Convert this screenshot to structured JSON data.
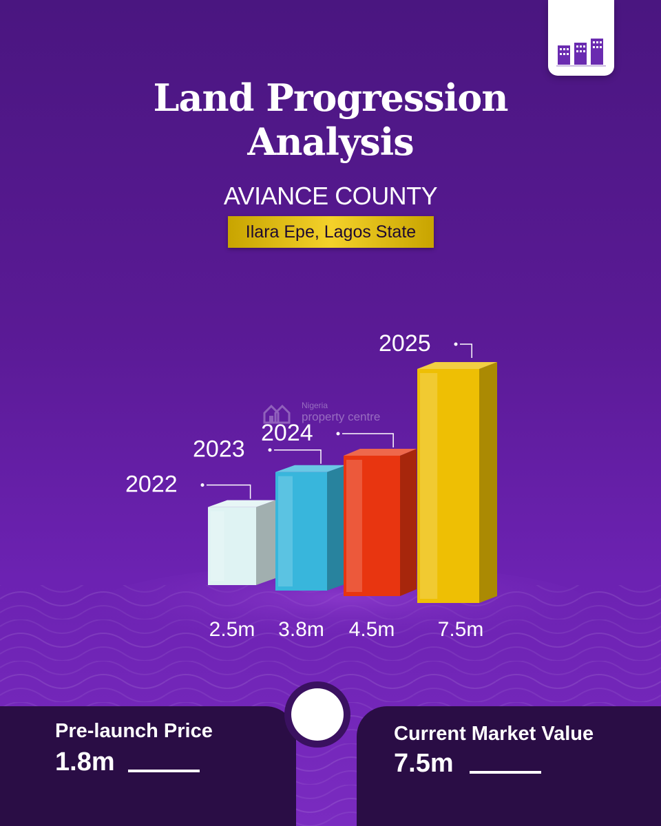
{
  "header": {
    "title_line1": "Land Progression",
    "title_line2": "Analysis",
    "project_name": "AVIANCE COUNTY",
    "location": "Ilara Epe, Lagos  State"
  },
  "watermark": {
    "line1": "Nigeria",
    "line2": "property centre"
  },
  "chart_data": {
    "type": "bar",
    "style": "3d",
    "categories": [
      "2022",
      "2023",
      "2024",
      "2025"
    ],
    "values": [
      2.5,
      3.8,
      4.5,
      7.5
    ],
    "value_labels": [
      "2.5m",
      "3.8m",
      "4.5m",
      "7.5m"
    ],
    "title": "",
    "bar_colors": [
      "#dff3f3",
      "#38b6dc",
      "#e83510",
      "#eebf04"
    ],
    "grid": false,
    "legend": "none"
  },
  "footer": {
    "left_label": "Pre-launch Price",
    "left_value": "1.8m",
    "right_label": "Current Market Value",
    "right_value": "7.5m"
  },
  "colors": {
    "background": "#5a1a95",
    "panel": "#2a0d45",
    "badge": "#f4d12a"
  }
}
